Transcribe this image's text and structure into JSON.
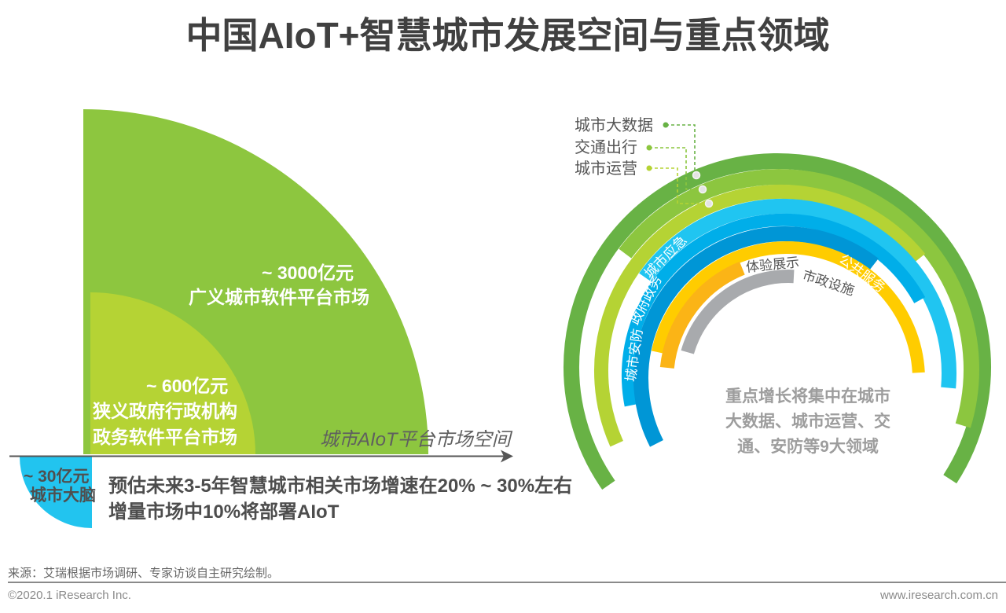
{
  "title": "中国AIoT+智慧城市发展空间与重点领域",
  "chart_data": [
    {
      "type": "area",
      "xlabel": "城市AIoT平台市场空间",
      "ylabel": "",
      "unit": "亿元",
      "categories": [
        "广义城市软件平台市场",
        "狭义政府行政机构政务软件平台市场",
        "城市大脑"
      ],
      "category_lines": [
        [
          "广义城市软件平台市场"
        ],
        [
          "狭义政府行政机构",
          "政务软件平台市场"
        ],
        [
          "城市大脑"
        ]
      ],
      "values": [
        3000,
        600,
        30
      ],
      "value_labels": [
        "~ 3000亿元",
        "~ 600亿元",
        "~ 30亿元"
      ],
      "colors": [
        "#8dc63f",
        "#b5d334",
        "#22c4ef"
      ],
      "annotations": [
        "预估未来3-5年智慧城市相关市场增速在20% ~ 30%左右",
        "增量市场中10%将部署AIoT"
      ],
      "axis_color": "#555555"
    },
    {
      "type": "pie",
      "subtype": "radial-rings",
      "categories": [
        "城市大数据",
        "交通出行",
        "城市运营",
        "城市应急",
        "政府政务",
        "城市安防",
        "公共服务",
        "体验展示",
        "市政设施"
      ],
      "colors": [
        "#68b245",
        "#8cc63f",
        "#b5d334",
        "#20c5f1",
        "#00aee9",
        "#0096d6",
        "#ffcc00",
        "#fbb416",
        "#a8aaad"
      ],
      "annotation_lines": [
        "重点增长将集中在城市",
        "大数据、城市运营、交",
        "通、安防等9大领域"
      ]
    }
  ],
  "footer": {
    "source": "来源：艾瑞根据市场调研、专家访谈自主研究绘制。",
    "copyright": "©2020.1 iResearch Inc.",
    "website": "www.iresearch.com.cn"
  }
}
